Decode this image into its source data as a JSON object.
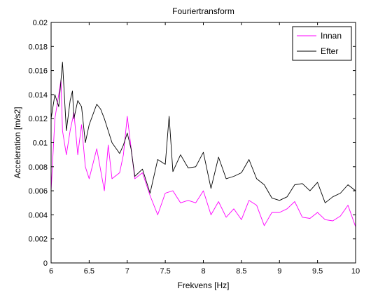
{
  "chart_data": {
    "type": "line",
    "title": "Fouriertransform",
    "xlabel": "Frekvens [Hz]",
    "ylabel": "Acceleration [m/s2]",
    "xlim": [
      6,
      10
    ],
    "ylim": [
      0,
      0.02
    ],
    "xticks": [
      6,
      6.5,
      7,
      7.5,
      8,
      8.5,
      9,
      9.5,
      10
    ],
    "xtick_labels": [
      "6",
      "6.5",
      "7",
      "7.5",
      "8",
      "8.5",
      "9",
      "9.5",
      "10"
    ],
    "yticks": [
      0,
      0.002,
      0.004,
      0.006,
      0.008,
      0.01,
      0.012,
      0.014,
      0.016,
      0.018,
      0.02
    ],
    "ytick_labels": [
      "0",
      "0.002",
      "0.004",
      "0.006",
      "0.008",
      "0.01",
      "0.012",
      "0.014",
      "0.016",
      "0.018",
      "0.02"
    ],
    "grid": false,
    "legend_position": "top-right",
    "series": [
      {
        "name": "Innan",
        "color": "#ff00ff",
        "x": [
          6.0,
          6.05,
          6.1,
          6.13,
          6.15,
          6.2,
          6.25,
          6.3,
          6.35,
          6.4,
          6.45,
          6.5,
          6.6,
          6.7,
          6.75,
          6.8,
          6.9,
          6.95,
          7.0,
          7.1,
          7.2,
          7.3,
          7.4,
          7.5,
          7.6,
          7.7,
          7.8,
          7.9,
          8.0,
          8.1,
          8.2,
          8.3,
          8.4,
          8.5,
          8.6,
          8.7,
          8.8,
          8.9,
          9.0,
          9.1,
          9.2,
          9.3,
          9.4,
          9.5,
          9.6,
          9.7,
          9.8,
          9.9,
          10.0
        ],
        "y": [
          0.006,
          0.012,
          0.014,
          0.0152,
          0.011,
          0.009,
          0.011,
          0.0125,
          0.009,
          0.0115,
          0.008,
          0.007,
          0.0095,
          0.006,
          0.0098,
          0.007,
          0.0075,
          0.009,
          0.0122,
          0.007,
          0.0075,
          0.0056,
          0.004,
          0.0058,
          0.006,
          0.005,
          0.0052,
          0.005,
          0.006,
          0.004,
          0.0051,
          0.0038,
          0.0045,
          0.0036,
          0.0052,
          0.0048,
          0.0031,
          0.0042,
          0.0042,
          0.0045,
          0.0051,
          0.0038,
          0.0037,
          0.0042,
          0.0036,
          0.0035,
          0.0039,
          0.0048,
          0.003
        ]
      },
      {
        "name": "Efter",
        "color": "#000000",
        "x": [
          6.0,
          6.05,
          6.1,
          6.15,
          6.2,
          6.25,
          6.28,
          6.3,
          6.35,
          6.4,
          6.45,
          6.5,
          6.6,
          6.65,
          6.7,
          6.8,
          6.9,
          6.95,
          7.0,
          7.05,
          7.1,
          7.2,
          7.3,
          7.4,
          7.5,
          7.55,
          7.6,
          7.7,
          7.8,
          7.9,
          8.0,
          8.1,
          8.2,
          8.3,
          8.4,
          8.5,
          8.6,
          8.7,
          8.8,
          8.9,
          9.0,
          9.1,
          9.2,
          9.3,
          9.4,
          9.5,
          9.6,
          9.7,
          9.8,
          9.9,
          10.0
        ],
        "y": [
          0.012,
          0.014,
          0.013,
          0.0167,
          0.011,
          0.0135,
          0.0143,
          0.012,
          0.0135,
          0.013,
          0.01,
          0.0115,
          0.0132,
          0.0128,
          0.012,
          0.01,
          0.0091,
          0.0098,
          0.0108,
          0.0095,
          0.0072,
          0.0078,
          0.0058,
          0.0086,
          0.0082,
          0.0122,
          0.0076,
          0.009,
          0.0079,
          0.008,
          0.0092,
          0.0062,
          0.0088,
          0.007,
          0.0072,
          0.0075,
          0.0086,
          0.007,
          0.0065,
          0.0054,
          0.0052,
          0.0055,
          0.0065,
          0.0066,
          0.006,
          0.0067,
          0.005,
          0.0055,
          0.0058,
          0.0065,
          0.006
        ]
      }
    ]
  }
}
